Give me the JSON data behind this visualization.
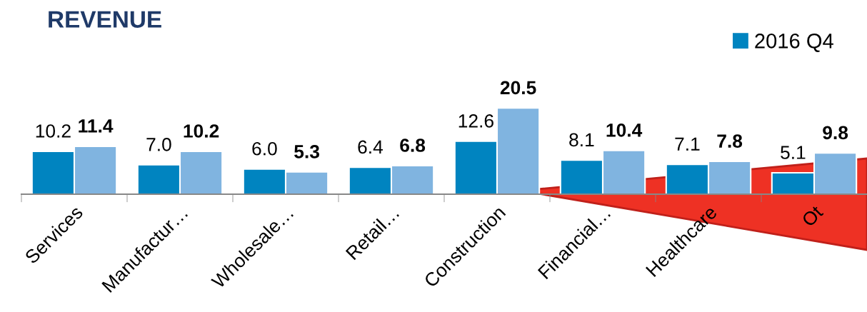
{
  "chart_data": {
    "type": "bar",
    "title": "REVENUE",
    "categories": [
      "Services",
      "Manufactur…",
      "Wholesale…",
      "Retail…",
      "Construction",
      "Financial…",
      "Healthcare",
      "Ot"
    ],
    "series": [
      {
        "name": "2016 Q4",
        "color": "#0084c0",
        "values": [
          10.2,
          7.0,
          6.0,
          6.4,
          12.6,
          8.1,
          7.1,
          5.1
        ],
        "value_labels": [
          "10.2",
          "7.0",
          "6.0",
          "6.4",
          "12.6",
          "8.1",
          "7.1",
          "5.1"
        ]
      },
      {
        "color": "#80b4e0",
        "values": [
          11.4,
          10.2,
          5.3,
          6.8,
          20.5,
          10.4,
          7.8,
          9.8
        ]
      }
    ],
    "data_labels": true,
    "legend": "top right",
    "grid": false
  }
}
